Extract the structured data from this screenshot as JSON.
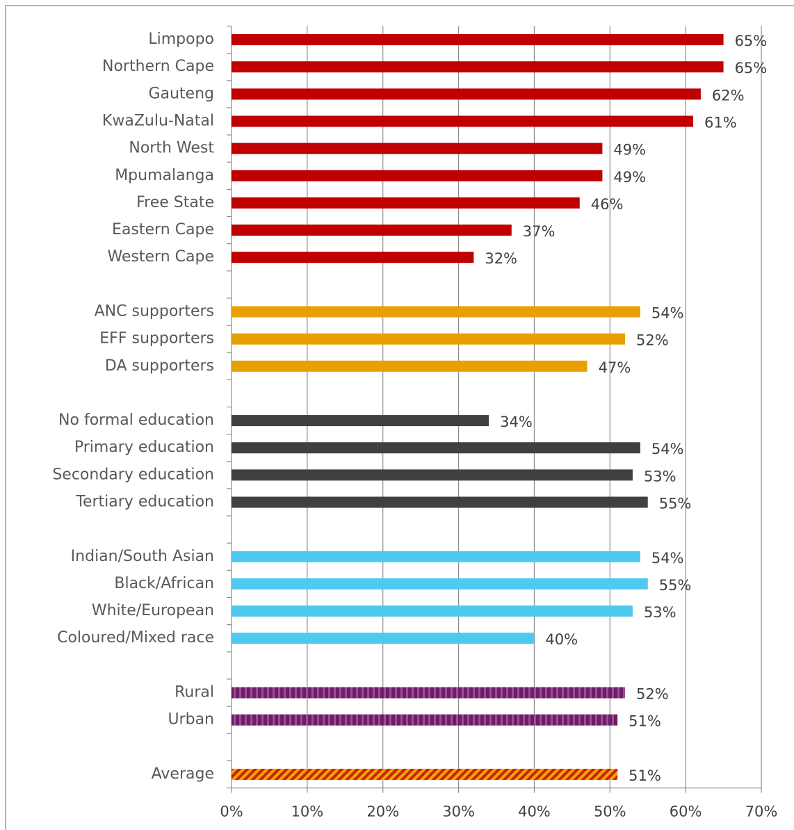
{
  "chart_data": {
    "type": "bar",
    "orientation": "horizontal",
    "categories": [
      "Limpopo",
      "Northern Cape",
      "Gauteng",
      "KwaZulu-Natal",
      "North West",
      "Mpumalanga",
      "Free State",
      "Eastern Cape",
      "Western Cape",
      null,
      "ANC supporters",
      "EFF supporters",
      "DA supporters",
      null,
      "No formal education",
      "Primary education",
      "Secondary education",
      "Tertiary education",
      null,
      "Indian/South Asian",
      "Black/African",
      "White/European",
      "Coloured/Mixed race",
      null,
      "Rural",
      "Urban",
      null,
      "Average"
    ],
    "values": [
      65,
      65,
      62,
      61,
      49,
      49,
      46,
      37,
      32,
      null,
      54,
      52,
      47,
      null,
      34,
      54,
      53,
      55,
      null,
      54,
      55,
      53,
      40,
      null,
      52,
      51,
      null,
      51
    ],
    "value_labels": [
      "65%",
      "65%",
      "62%",
      "61%",
      "49%",
      "49%",
      "46%",
      "37%",
      "32%",
      null,
      "54%",
      "52%",
      "47%",
      null,
      "34%",
      "54%",
      "53%",
      "55%",
      null,
      "54%",
      "55%",
      "53%",
      "40%",
      null,
      "52%",
      "51%",
      null,
      "51%"
    ],
    "colors": [
      "#c00000",
      "#c00000",
      "#c00000",
      "#c00000",
      "#c00000",
      "#c00000",
      "#c00000",
      "#c00000",
      "#c00000",
      null,
      "#e8a000",
      "#e8a000",
      "#e8a000",
      null,
      "#404040",
      "#404040",
      "#404040",
      "#404040",
      null,
      "#4ec9f0",
      "#4ec9f0",
      "#4ec9f0",
      "#4ec9f0",
      null,
      "#6a1f66",
      "#6a1f66",
      null,
      "#f0a800"
    ],
    "hatch": [
      null,
      null,
      null,
      null,
      null,
      null,
      null,
      null,
      null,
      null,
      null,
      null,
      null,
      null,
      null,
      null,
      null,
      null,
      null,
      null,
      null,
      null,
      null,
      null,
      {
        "style": "vertical",
        "color": "#a04a9a"
      },
      {
        "style": "vertical",
        "color": "#a04a9a"
      },
      null,
      {
        "style": "diagonal",
        "color": "#d02000"
      }
    ],
    "xlim": [
      0,
      70
    ],
    "xticks": [
      {
        "value": 0,
        "label": "0%"
      },
      {
        "value": 10,
        "label": "10%"
      },
      {
        "value": 20,
        "label": "20%"
      },
      {
        "value": 30,
        "label": "30%"
      },
      {
        "value": 40,
        "label": "40%"
      },
      {
        "value": 50,
        "label": "50%"
      },
      {
        "value": 60,
        "label": "60%"
      },
      {
        "value": 70,
        "label": "70%"
      }
    ],
    "grid": true
  }
}
